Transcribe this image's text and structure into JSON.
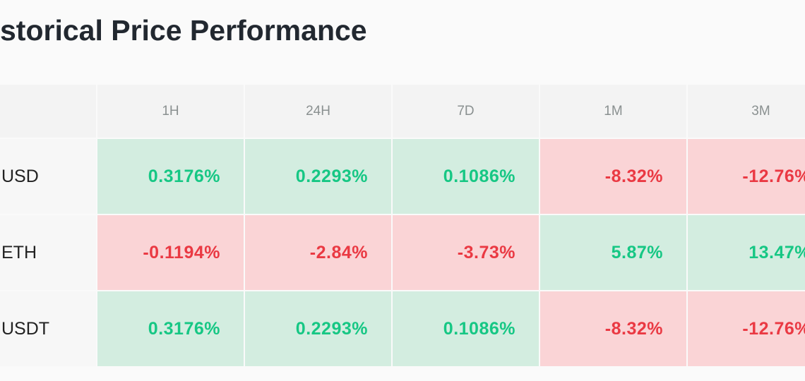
{
  "header": {
    "title": "storical Price Performance"
  },
  "table": {
    "columns": [
      "1H",
      "24H",
      "7D",
      "1M",
      "3M"
    ],
    "rows": [
      {
        "name": "USD",
        "cells": [
          "0.3176%",
          "0.2293%",
          "0.1086%",
          "-8.32%",
          "-12.76%"
        ]
      },
      {
        "name": "ETH",
        "cells": [
          "-0.1194%",
          "-2.84%",
          "-3.73%",
          "5.87%",
          "13.47%"
        ]
      },
      {
        "name": "USDT",
        "cells": [
          "0.3176%",
          "0.2293%",
          "0.1086%",
          "-8.32%",
          "-12.76%"
        ]
      }
    ]
  }
}
